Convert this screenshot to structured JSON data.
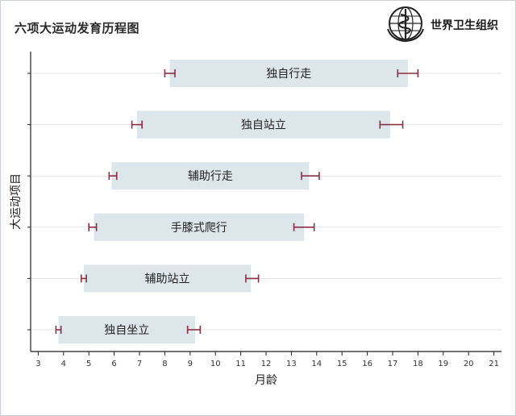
{
  "header": {
    "title": "六项大运动发育历程图",
    "org_name": "世界卫生组织"
  },
  "chart_data": {
    "type": "bar",
    "subtype": "floating-range-with-error-bars",
    "title": "六项大运动发育历程图",
    "xlabel": "月龄",
    "ylabel": "大运动项目",
    "xlim": [
      2.7,
      21.3
    ],
    "x_ticks": [
      3,
      4,
      5,
      6,
      7,
      8,
      9,
      10,
      11,
      12,
      13,
      14,
      15,
      16,
      17,
      18,
      19,
      20,
      21
    ],
    "grid": "horizontal",
    "bar_color": "#dce6eb",
    "error_color": "#8b2f45",
    "categories": [
      "独自行走",
      "独自站立",
      "辅助行走",
      "手膝式爬行",
      "辅助站立",
      "独自坐立"
    ],
    "ranges": [
      {
        "label": "独自行走",
        "start": 8.2,
        "end": 17.6,
        "start_ci": [
          8.0,
          8.4
        ],
        "end_ci": [
          17.2,
          18.0
        ]
      },
      {
        "label": "独自站立",
        "start": 6.9,
        "end": 16.9,
        "start_ci": [
          6.7,
          7.1
        ],
        "end_ci": [
          16.5,
          17.4
        ]
      },
      {
        "label": "辅助行走",
        "start": 5.9,
        "end": 13.7,
        "start_ci": [
          5.8,
          6.1
        ],
        "end_ci": [
          13.4,
          14.1
        ]
      },
      {
        "label": "手膝式爬行",
        "start": 5.2,
        "end": 13.5,
        "start_ci": [
          5.0,
          5.3
        ],
        "end_ci": [
          13.1,
          13.9
        ]
      },
      {
        "label": "辅助站立",
        "start": 4.8,
        "end": 11.4,
        "start_ci": [
          4.7,
          4.9
        ],
        "end_ci": [
          11.2,
          11.7
        ]
      },
      {
        "label": "独自坐立",
        "start": 3.8,
        "end": 9.2,
        "start_ci": [
          3.7,
          3.9
        ],
        "end_ci": [
          8.9,
          9.4
        ]
      }
    ]
  }
}
